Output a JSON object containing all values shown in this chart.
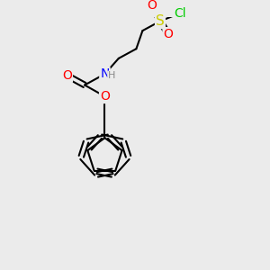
{
  "bg_color": "#ebebeb",
  "atom_colors": {
    "O": "#ff0000",
    "N": "#0000ff",
    "S": "#cccc00",
    "Cl": "#00cc00",
    "C": "#000000",
    "H": "#888888"
  },
  "bond_color": "#000000",
  "bond_width": 1.5,
  "font_size": 9,
  "xlim": [
    0,
    10
  ],
  "ylim": [
    0,
    10
  ]
}
